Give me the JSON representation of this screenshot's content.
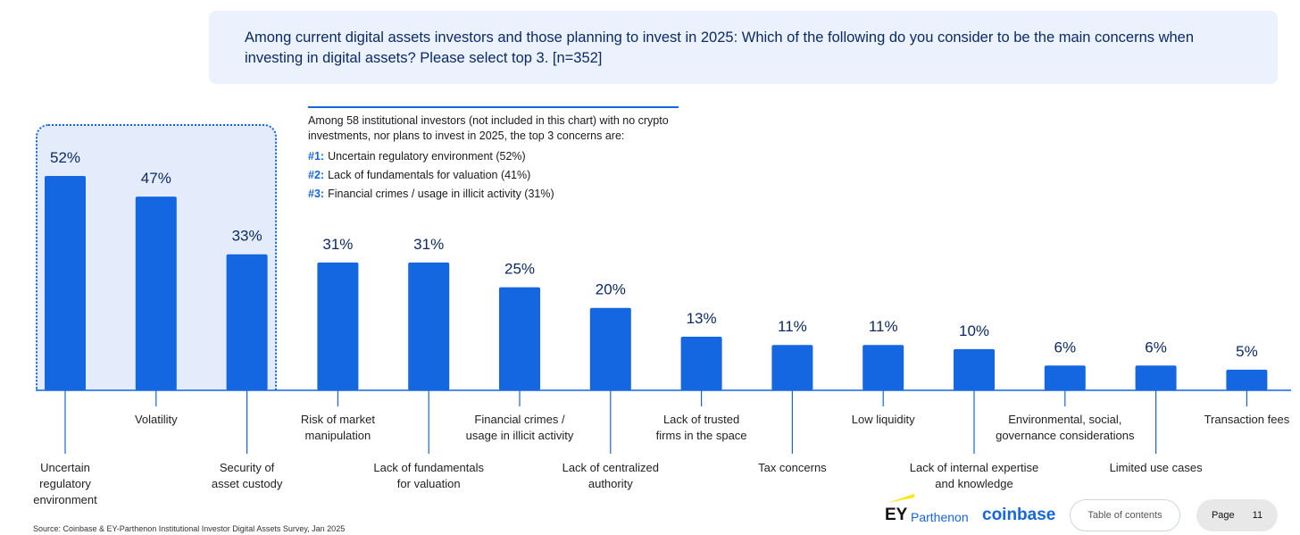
{
  "question": "Among current digital assets investors and those planning to invest in 2025: Which of the following do you consider to be the main concerns when investing in digital assets? Please select top 3. [n=352]",
  "callout": {
    "intro": "Among 58 institutional investors (not included in this chart) with no crypto investments, nor plans to invest in 2025, the top 3 concerns are:",
    "items": [
      {
        "num": "#1:",
        "text": "Uncertain regulatory environment (52%)"
      },
      {
        "num": "#2:",
        "text": "Lack of fundamentals for valuation (41%)"
      },
      {
        "num": "#3:",
        "text": "Financial crimes / usage in illicit activity (31%)"
      }
    ]
  },
  "chart_data": {
    "type": "bar",
    "title": "",
    "xlabel": "",
    "ylabel": "",
    "ylim": [
      0,
      52
    ],
    "unit": "%",
    "highlighted_count": 3,
    "categories": [
      "Uncertain regulatory environment",
      "Volatility",
      "Security of asset custody",
      "Risk of market manipulation",
      "Lack of fundamentals for valuation",
      "Financial crimes / usage in illicit activity",
      "Lack of centralized authority",
      "Lack of trusted firms in the space",
      "Tax concerns",
      "Low liquidity",
      "Lack of internal expertise and knowledge",
      "Environmental, social, governance considerations",
      "Limited use cases",
      "Transaction fees"
    ],
    "label_lines": [
      [
        "Uncertain",
        "regulatory",
        "environment"
      ],
      [
        "Volatility"
      ],
      [
        "Security of",
        "asset custody"
      ],
      [
        "Risk of market",
        "manipulation"
      ],
      [
        "Lack of fundamentals",
        "for valuation"
      ],
      [
        "Financial crimes /",
        "usage in illicit activity"
      ],
      [
        "Lack of centralized",
        "authority"
      ],
      [
        "Lack of trusted",
        "firms in the space"
      ],
      [
        "Tax concerns"
      ],
      [
        "Low liquidity"
      ],
      [
        "Lack of internal expertise",
        "and knowledge"
      ],
      [
        "Environmental, social,",
        "governance considerations"
      ],
      [
        "Limited use cases"
      ],
      [
        "Transaction fees"
      ]
    ],
    "values": [
      52,
      47,
      33,
      31,
      31,
      25,
      20,
      13,
      11,
      11,
      10,
      6,
      6,
      5
    ],
    "bar_color": "#1467e0",
    "value_color": "#0b2a66"
  },
  "footer": {
    "source": "Source: Coinbase & EY-Parthenon Institutional Investor Digital Assets Survey, Jan 2025",
    "logo_ey": "EY",
    "logo_parthenon": "Parthenon",
    "logo_coinbase": "coinbase",
    "toc_label": "Table of contents",
    "page_label": "Page",
    "page_number": "11"
  }
}
